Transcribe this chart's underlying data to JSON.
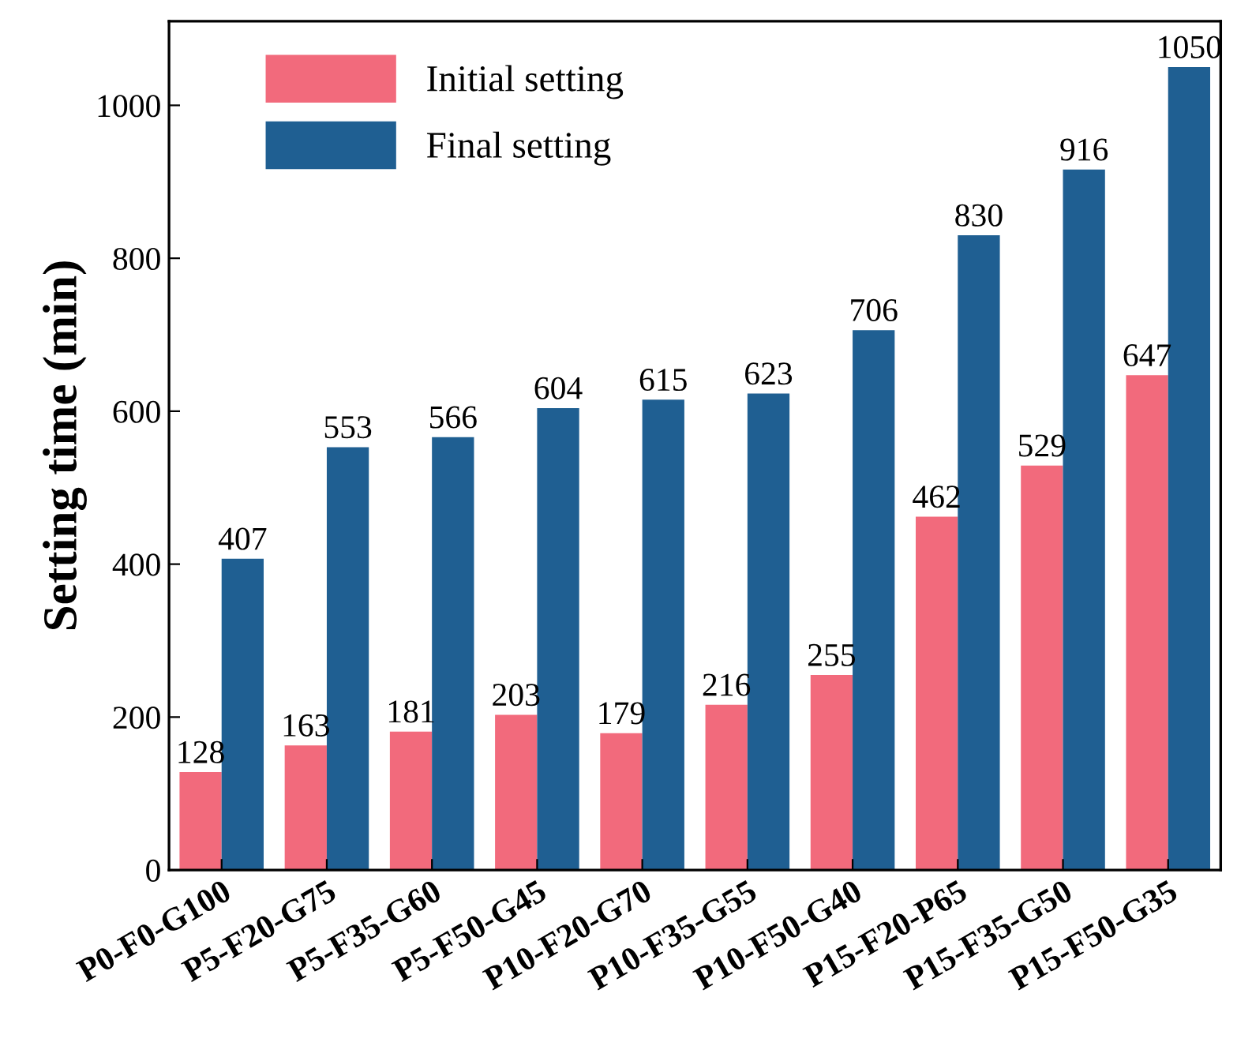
{
  "chart_data": {
    "type": "bar",
    "ylabel": "Setting time (min)",
    "categories": [
      "P0-F0-G100",
      "P5-F20-G75",
      "P5-F35-G60",
      "P5-F50-G45",
      "P10-F20-G70",
      "P10-F35-G55",
      "P10-F50-G40",
      "P15-F20-P65",
      "P15-F35-G50",
      "P15-F50-G35"
    ],
    "series": [
      {
        "name": "Initial setting",
        "color": "#f26a7c",
        "values": [
          128,
          163,
          181,
          203,
          179,
          216,
          255,
          462,
          529,
          647
        ]
      },
      {
        "name": "Final setting",
        "color": "#1f5f92",
        "values": [
          407,
          553,
          566,
          604,
          615,
          623,
          706,
          830,
          916,
          1050
        ]
      }
    ],
    "ylim": [
      0,
      1110
    ],
    "yticks": [
      0,
      200,
      400,
      600,
      800,
      1000
    ],
    "data_labels": true,
    "legend": "top left",
    "grid": false
  }
}
